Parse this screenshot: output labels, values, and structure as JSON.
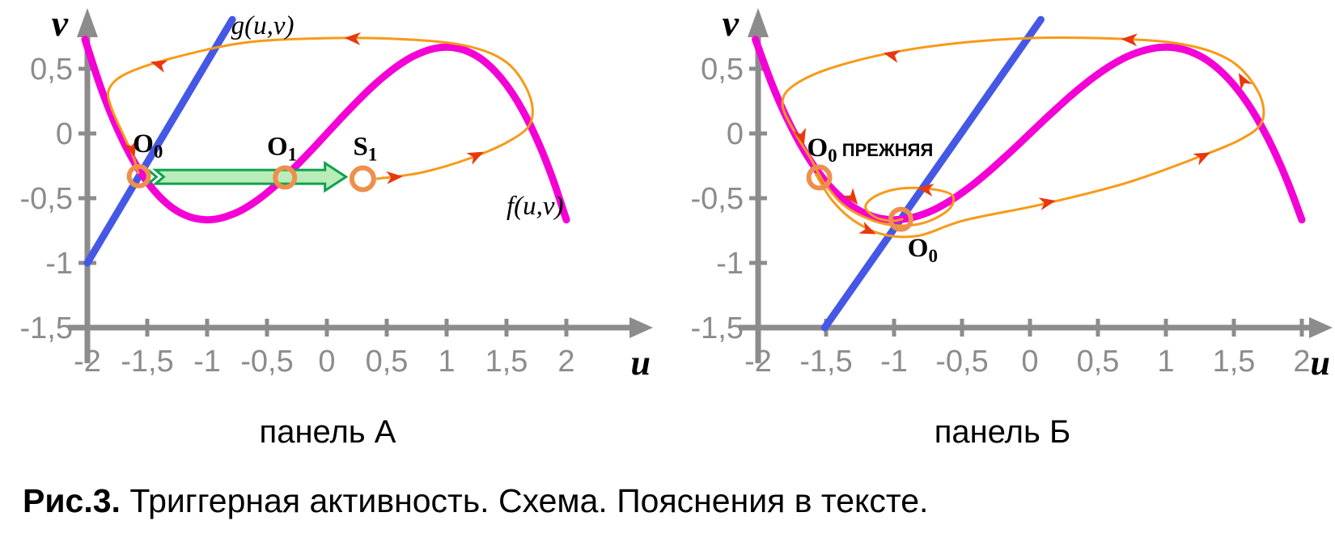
{
  "caption": {
    "prefix": "Рис.3.",
    "text": " Триггерная активность. Схема. Пояснения в тексте."
  },
  "chart_data": {
    "type": "line",
    "description": "Two phase-plane diagrams (u,v) of a FitzHugh–Nagumo-type system: cubic nullcline f(u,v), linear nullcline g(u,v), orange trajectories with red flow arrows, orange-circled fixed points; panel A shows a jump of the equilibrium from O0 to O1/S1 (green double arrow), panel B shows the shifted nullcline with old and new O0 and a spiral approach to the new equilibrium.",
    "colors": {
      "axis": "#8C8C8C",
      "tick_text": "#8C8C8C",
      "arrow_red": "#E8380D",
      "circle_orange": "#EE8F4D",
      "trajectory_orange": "#F79A18",
      "f_magenta": "#F400D6",
      "g_blue": "#4558E5",
      "jump_fill": "#B9ECB9",
      "jump_stroke": "#0DA24C"
    },
    "cubic_nullcline_points": [
      [
        -2.02,
        0.727
      ],
      [
        -1.9,
        0.386
      ],
      [
        -1.8,
        0.144
      ],
      [
        -1.7,
        -0.062
      ],
      [
        -1.6,
        -0.235
      ],
      [
        -1.5,
        -0.375
      ],
      [
        -1.4,
        -0.485
      ],
      [
        -1.3,
        -0.568
      ],
      [
        -1.2,
        -0.624
      ],
      [
        -1.1,
        -0.656
      ],
      [
        -1.0,
        -0.667
      ],
      [
        -0.9,
        -0.657
      ],
      [
        -0.8,
        -0.629
      ],
      [
        -0.7,
        -0.586
      ],
      [
        -0.6,
        -0.528
      ],
      [
        -0.5,
        -0.458
      ],
      [
        -0.4,
        -0.379
      ],
      [
        -0.3,
        -0.291
      ],
      [
        -0.2,
        -0.197
      ],
      [
        -0.1,
        -0.1
      ],
      [
        0,
        0
      ],
      [
        0.1,
        0.1
      ],
      [
        0.2,
        0.197
      ],
      [
        0.3,
        0.291
      ],
      [
        0.4,
        0.379
      ],
      [
        0.5,
        0.458
      ],
      [
        0.6,
        0.528
      ],
      [
        0.7,
        0.586
      ],
      [
        0.8,
        0.629
      ],
      [
        0.9,
        0.657
      ],
      [
        1.0,
        0.667
      ],
      [
        1.1,
        0.656
      ],
      [
        1.2,
        0.624
      ],
      [
        1.3,
        0.568
      ],
      [
        1.4,
        0.485
      ],
      [
        1.5,
        0.375
      ],
      [
        1.6,
        0.235
      ],
      [
        1.7,
        0.062
      ],
      [
        1.8,
        -0.144
      ],
      [
        1.9,
        -0.386
      ],
      [
        2.0,
        -0.667
      ]
    ],
    "panels": [
      {
        "title": "панель А",
        "x_axis": {
          "label": "u",
          "tick_labels": [
            "-2",
            "-1,5",
            "-1",
            "-0,5",
            "0",
            "0,5",
            "1",
            "1,5",
            "2"
          ],
          "tick_values": [
            -2,
            -1.5,
            -1,
            -0.5,
            0,
            0.5,
            1,
            1.5,
            2
          ]
        },
        "y_axis": {
          "label": "v",
          "tick_labels": [
            "0,5",
            "0",
            "-0,5",
            "-1",
            "-1,5"
          ],
          "tick_values": [
            0.5,
            0,
            -0.5,
            -1,
            -1.5
          ]
        },
        "f_nullcline": {
          "label": "f(u,v)",
          "equation": "v = u - u³/3",
          "label_pos": {
            "u": 1.5,
            "v": -0.625
          }
        },
        "g_nullcline": {
          "label": "g(u,v)",
          "endpoints": [
            [
              -2,
              -1
            ],
            [
              -0.79,
              0.88
            ]
          ],
          "label_pos": {
            "u": -0.8,
            "v": 0.77
          }
        },
        "fixed_points": [
          {
            "name": "O0",
            "u": -1.57,
            "v": -0.33,
            "r": 12
          },
          {
            "name": "O1",
            "u": -0.35,
            "v": -0.34,
            "r": 12
          },
          {
            "name": "S1",
            "u": 0.3,
            "v": -0.35,
            "r": 13.5
          }
        ],
        "point_labels": [
          {
            "main": "O",
            "sub": "0",
            "suffix": "",
            "u": -1.62,
            "v": -0.145
          },
          {
            "main": "O",
            "sub": "1",
            "suffix": "",
            "u": -0.5,
            "v": -0.165
          },
          {
            "main": "S",
            "sub": "1",
            "suffix": "",
            "u": 0.22,
            "v": -0.165
          }
        ],
        "jump_arrow": {
          "from_u": -1.43,
          "tip_u": 0.16,
          "v": -0.335
        },
        "trajectory": {
          "points": [
            [
              0.42,
              -0.35
            ],
            [
              0.8,
              -0.3
            ],
            [
              1.2,
              -0.19
            ],
            [
              1.52,
              -0.06
            ],
            [
              1.7,
              0.08
            ],
            [
              1.69,
              0.3
            ],
            [
              1.5,
              0.55
            ],
            [
              1.15,
              0.68
            ],
            [
              0.6,
              0.73
            ],
            [
              -0.05,
              0.735
            ],
            [
              -0.7,
              0.7
            ],
            [
              -1.3,
              0.58
            ],
            [
              -1.68,
              0.46
            ],
            [
              -1.82,
              0.34
            ],
            [
              -1.8,
              0.2
            ],
            [
              -1.7,
              -0.01
            ],
            [
              -1.62,
              -0.17
            ],
            [
              -1.575,
              -0.305
            ]
          ],
          "arrows": [
            {
              "u": 0.6,
              "v": -0.335,
              "angle": -4
            },
            {
              "u": 1.28,
              "v": -0.155,
              "angle": -26
            },
            {
              "u": 0.18,
              "v": 0.737,
              "angle": 183
            },
            {
              "u": -1.44,
              "v": 0.545,
              "angle": 197
            },
            {
              "u": -1.615,
              "v": -0.155,
              "angle": 74
            }
          ]
        }
      },
      {
        "title": "панель Б",
        "x_axis": {
          "label": "u",
          "tick_labels": [
            "-2",
            "-1,5",
            "-1",
            "-0,5",
            "0",
            "0,5",
            "1",
            "1,5",
            "2"
          ],
          "tick_values": [
            -2,
            -1.5,
            -1,
            -0.5,
            0,
            0.5,
            1,
            1.5,
            2
          ]
        },
        "y_axis": {
          "label": "v",
          "tick_labels": [
            "0,5",
            "0",
            "-0,5",
            "-1",
            "-1,5"
          ],
          "tick_values": [
            0.5,
            0,
            -0.5,
            -1,
            -1.5
          ]
        },
        "f_nullcline": {
          "label": "",
          "equation": "v = u - u³/3",
          "label_pos": null
        },
        "g_nullcline": {
          "label": "",
          "endpoints": [
            [
              -1.51,
              -1.5
            ],
            [
              0.08,
              0.88
            ]
          ],
          "label_pos": null
        },
        "fixed_points": [
          {
            "name": "O0_prev",
            "u": -1.55,
            "v": -0.34,
            "r": 13
          },
          {
            "name": "O0_new",
            "u": -0.95,
            "v": -0.663,
            "r": 12.5
          }
        ],
        "point_labels": [
          {
            "main": "O",
            "sub": "0",
            "suffix": " ПРЕЖНЯЯ",
            "u": -1.64,
            "v": -0.175
          },
          {
            "main": "O",
            "sub": "0",
            "suffix": "",
            "u": -0.9,
            "v": -0.95
          }
        ],
        "jump_arrow": null,
        "trajectory": {
          "points": [
            [
              -1.575,
              -0.315
            ],
            [
              -1.46,
              -0.51
            ],
            [
              -1.3,
              -0.67
            ],
            [
              -1.08,
              -0.78
            ],
            [
              -0.82,
              -0.79
            ],
            [
              -0.48,
              -0.67
            ],
            [
              0.1,
              -0.545
            ],
            [
              0.7,
              -0.385
            ],
            [
              1.22,
              -0.19
            ],
            [
              1.56,
              -0.04
            ],
            [
              1.71,
              0.1
            ],
            [
              1.68,
              0.32
            ],
            [
              1.48,
              0.56
            ],
            [
              1.12,
              0.69
            ],
            [
              0.55,
              0.735
            ],
            [
              -0.15,
              0.73
            ],
            [
              -0.85,
              0.655
            ],
            [
              -1.42,
              0.52
            ],
            [
              -1.74,
              0.37
            ],
            [
              -1.82,
              0.22
            ],
            [
              -1.72,
              -0.01
            ],
            [
              -1.62,
              -0.18
            ],
            [
              -1.52,
              -0.37
            ],
            [
              -1.38,
              -0.545
            ],
            [
              -1.2,
              -0.655
            ],
            [
              -1.0,
              -0.71
            ],
            [
              -0.78,
              -0.69
            ],
            [
              -0.6,
              -0.59
            ],
            [
              -0.57,
              -0.48
            ],
            [
              -0.72,
              -0.43
            ],
            [
              -0.95,
              -0.425
            ],
            [
              -1.13,
              -0.48
            ],
            [
              -1.21,
              -0.565
            ],
            [
              -1.14,
              -0.645
            ],
            [
              -1.02,
              -0.675
            ],
            [
              -0.94,
              -0.662
            ]
          ],
          "arrows": [
            {
              "u": 0.16,
              "v": -0.525,
              "angle": -12
            },
            {
              "u": 1.3,
              "v": -0.16,
              "angle": -26
            },
            {
              "u": 1.55,
              "v": 0.44,
              "angle": -119
            },
            {
              "u": 0.7,
              "v": 0.728,
              "angle": 183
            },
            {
              "u": -1.05,
              "v": 0.615,
              "angle": 193
            },
            {
              "u": -1.67,
              "v": -0.06,
              "angle": 74
            },
            {
              "u": -1.16,
              "v": -0.765,
              "angle": 24
            },
            {
              "u": -0.8,
              "v": -0.424,
              "angle": 188
            },
            {
              "u": -1.285,
              "v": -0.525,
              "angle": 52
            }
          ]
        }
      }
    ]
  }
}
